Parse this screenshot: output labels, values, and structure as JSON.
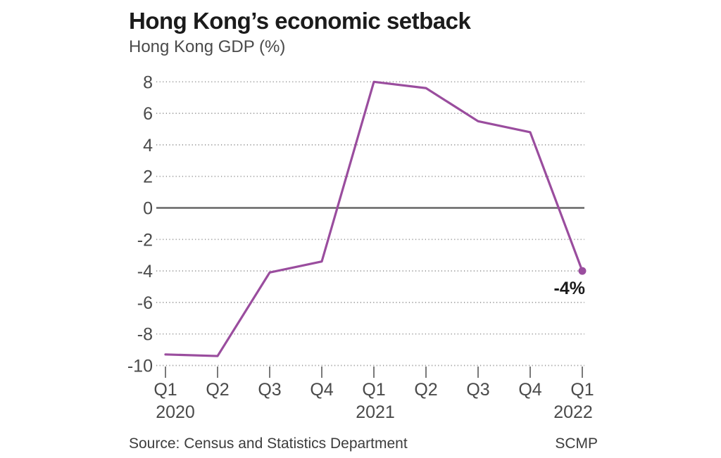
{
  "title": "Hong Kong’s economic setback",
  "subtitle": "Hong Kong GDP (%)",
  "footer": {
    "source": "Source: Census and Statistics Department",
    "credit": "SCMP"
  },
  "chart_data": {
    "type": "line",
    "x": [
      "Q1 2020",
      "Q2 2020",
      "Q3 2020",
      "Q4 2020",
      "Q1 2021",
      "Q2 2021",
      "Q3 2021",
      "Q4 2021",
      "Q1 2022"
    ],
    "tick_labels": [
      "Q1",
      "Q2",
      "Q3",
      "Q4",
      "Q1",
      "Q2",
      "Q3",
      "Q4",
      "Q1"
    ],
    "year_labels": [
      {
        "text": "2020",
        "index": 0
      },
      {
        "text": "2021",
        "index": 4
      },
      {
        "text": "2022",
        "index": 8
      }
    ],
    "values": [
      -9.3,
      -9.4,
      -4.1,
      -3.4,
      8.0,
      7.6,
      5.5,
      4.8,
      -4.0
    ],
    "title": "Hong Kong’s economic setback",
    "xlabel": "",
    "ylabel": "Hong Kong GDP (%)",
    "ylim": [
      -10,
      8
    ],
    "yticks": [
      8,
      6,
      4,
      2,
      0,
      -2,
      -4,
      -6,
      -8,
      -10
    ],
    "grid": "dotted horizontal",
    "legend": "none",
    "annotation": {
      "text": "-4%",
      "index": 8
    },
    "colors": {
      "line": "#9a4d9e",
      "grid": "#9a9a9a",
      "zero_line": "#666666",
      "tick_label": "#4a4a4a",
      "tick_mark": "#7a7a7a",
      "annotation_text": "#1b1b1b"
    }
  }
}
